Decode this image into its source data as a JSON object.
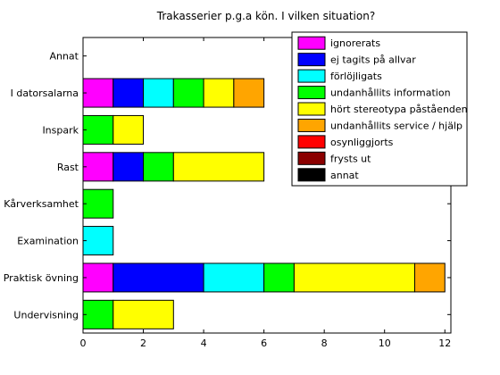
{
  "chart_data": {
    "type": "bar",
    "orientation": "horizontal",
    "stacked": true,
    "title": "Trakasserier p.g.a kön. I vilken situation?",
    "xlabel": "",
    "ylabel": "",
    "xlim": [
      0,
      12.2
    ],
    "xticks": [
      0,
      2,
      4,
      6,
      8,
      10,
      12
    ],
    "grid": false,
    "legend_position": "top-right",
    "categories": [
      "Annat",
      "I datorsalarna",
      "Inspark",
      "Rast",
      "Kårverksamhet",
      "Examination",
      "Praktisk övning",
      "Undervisning"
    ],
    "series": [
      {
        "name": "ignorerats",
        "color": "#ff00ff",
        "values": [
          0,
          1,
          0,
          1,
          0,
          0,
          1,
          0
        ]
      },
      {
        "name": "ej tagits på allvar",
        "color": "#0000ff",
        "values": [
          0,
          1,
          0,
          1,
          0,
          0,
          3,
          0
        ]
      },
      {
        "name": "förlöjligats",
        "color": "#00ffff",
        "values": [
          0,
          1,
          0,
          0,
          0,
          1,
          2,
          0
        ]
      },
      {
        "name": "undanhållits information",
        "color": "#00ff00",
        "values": [
          0,
          1,
          1,
          1,
          1,
          0,
          1,
          1
        ]
      },
      {
        "name": "hört stereotypa påståenden",
        "color": "#ffff00",
        "values": [
          0,
          1,
          1,
          3,
          0,
          0,
          4,
          2
        ]
      },
      {
        "name": "undanhållits service / hjälp",
        "color": "#ffa500",
        "values": [
          0,
          1,
          0,
          0,
          0,
          0,
          1,
          0
        ]
      },
      {
        "name": "osynliggjorts",
        "color": "#ff0000",
        "values": [
          0,
          0,
          0,
          0,
          0,
          0,
          0,
          0
        ]
      },
      {
        "name": "frysts ut",
        "color": "#8b0000",
        "values": [
          0,
          0,
          0,
          0,
          0,
          0,
          0,
          0
        ]
      },
      {
        "name": "annat",
        "color": "#000000",
        "values": [
          0,
          0,
          0,
          0,
          0,
          0,
          0,
          0
        ]
      }
    ]
  }
}
